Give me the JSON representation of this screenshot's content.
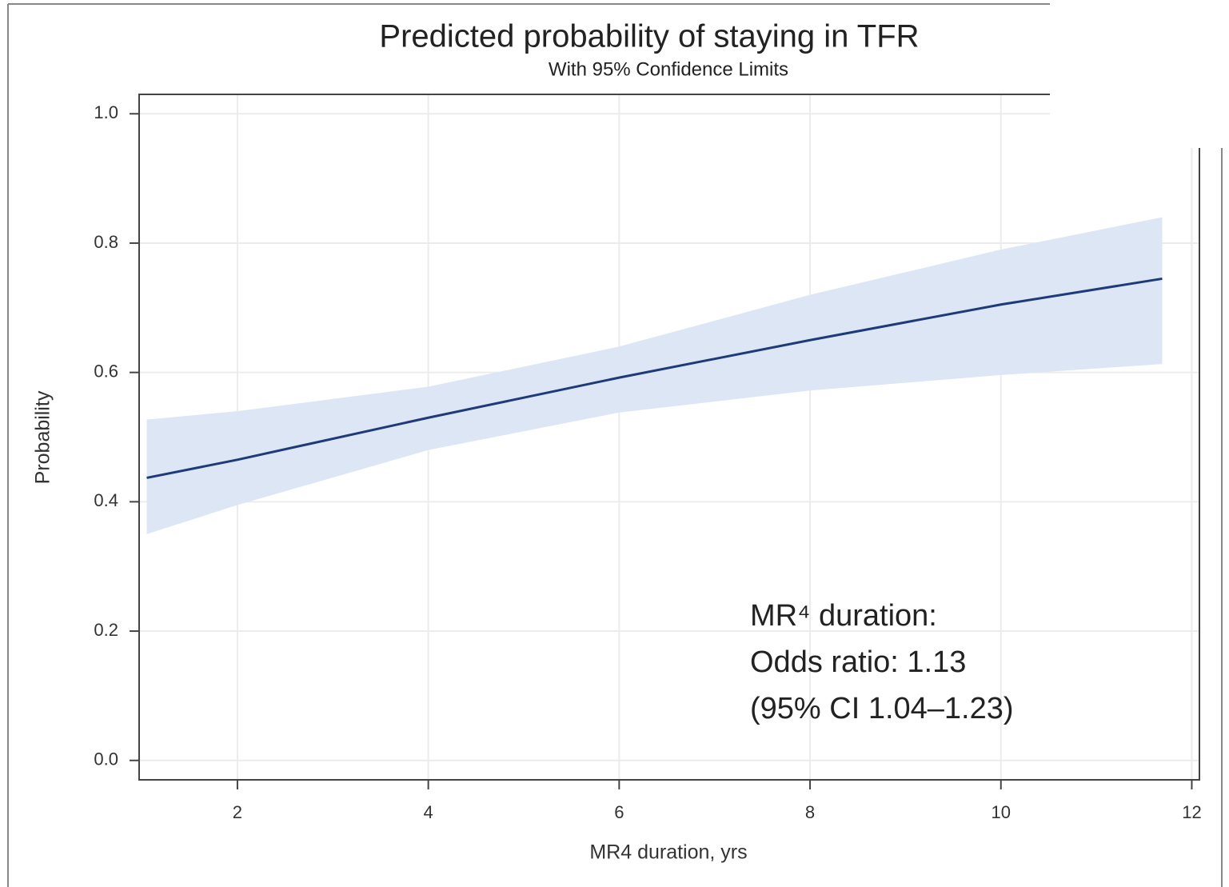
{
  "chart_data": {
    "type": "line",
    "title": "Predicted probability of staying in TFR",
    "subtitle": "With 95% Confidence Limits",
    "x_label": "MR4 duration, yrs",
    "y_label": "Probability",
    "x": [
      1.05,
      2,
      4,
      6,
      8,
      10,
      11.69
    ],
    "values": [
      0.437,
      0.465,
      0.53,
      0.592,
      0.65,
      0.705,
      0.745
    ],
    "lower": [
      0.35,
      0.395,
      0.48,
      0.538,
      0.572,
      0.596,
      0.613
    ],
    "upper": [
      0.527,
      0.54,
      0.578,
      0.64,
      0.72,
      0.79,
      0.84
    ],
    "color": "#1f3a78",
    "band_color": "#dce6f4",
    "xlim": [
      0.97,
      12.08
    ],
    "ylim": [
      -0.03,
      1.03
    ],
    "xticks": [
      2,
      4,
      6,
      8,
      10,
      12
    ],
    "yticks": [
      {
        "value": 0,
        "label": "0.0"
      },
      0.2,
      0.4,
      0.6,
      0.8,
      {
        "value": 1,
        "label": "1.0"
      }
    ],
    "grid": true,
    "annotation_lines": [
      "MR⁴ duration:",
      "Odds ratio: 1.13",
      "(95% CI 1.04–1.23)"
    ]
  }
}
